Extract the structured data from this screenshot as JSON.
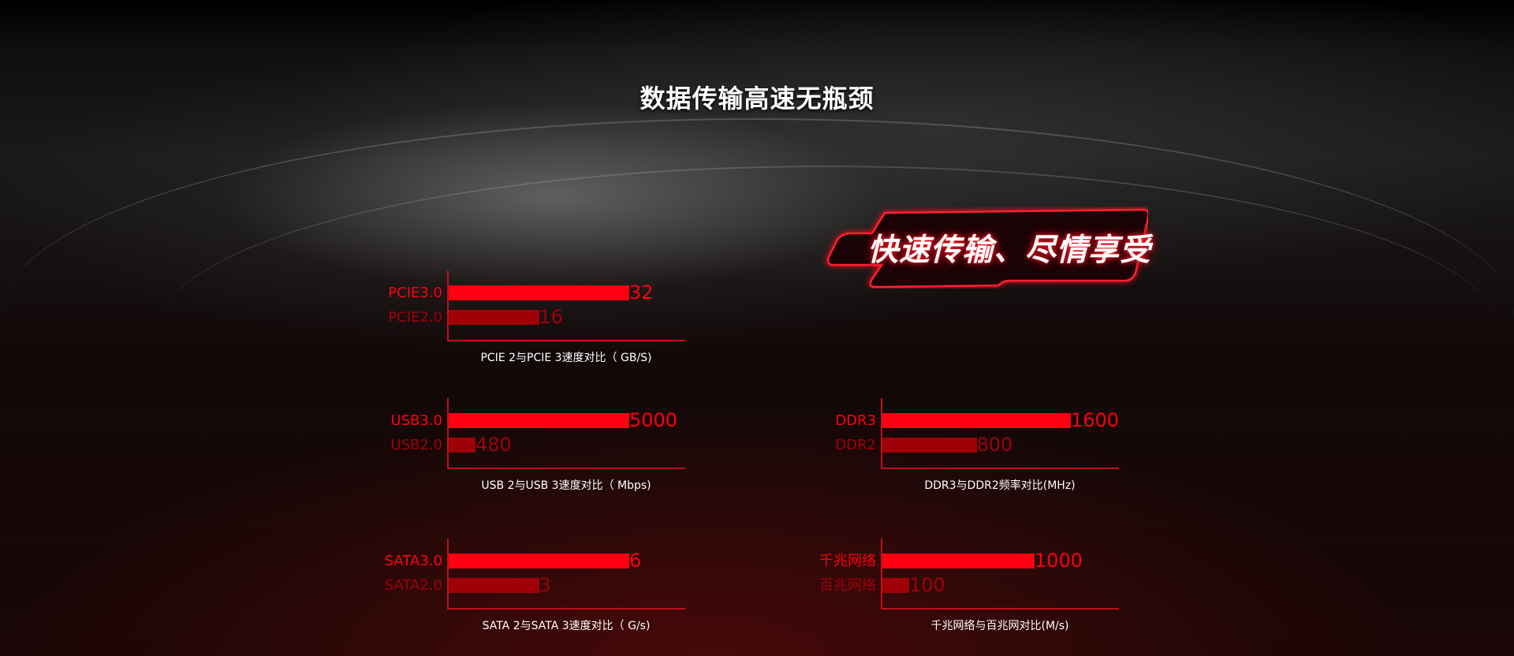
{
  "title": "数据传输高速无瓶颈",
  "badge": "快速传输、尽情享受",
  "colors": {
    "primary": "#ff0010",
    "secondary": "#a00008",
    "axis": "#c0101a"
  },
  "charts": [
    {
      "caption": "PCIE 2与PCIE 3速度对比（ GB/S)",
      "items": [
        {
          "label": "PCIE3.0",
          "value": 32,
          "value_text": "32"
        },
        {
          "label": "PCIE2.0",
          "value": 16,
          "value_text": "16"
        }
      ]
    },
    {
      "caption": "USB 2与USB 3速度对比（ Mbps)",
      "items": [
        {
          "label": "USB3.0",
          "value": 5000,
          "value_text": "5000"
        },
        {
          "label": "USB2.0",
          "value": 480,
          "value_text": "480"
        }
      ]
    },
    {
      "caption": "SATA 2与SATA 3速度对比（ G/s)",
      "items": [
        {
          "label": "SATA3.0",
          "value": 6,
          "value_text": "6"
        },
        {
          "label": "SATA2.0",
          "value": 3,
          "value_text": "3"
        }
      ]
    },
    {
      "caption": "DDR3与DDR2频率对比(MHz)",
      "items": [
        {
          "label": "DDR3",
          "value": 1600,
          "value_text": "1600"
        },
        {
          "label": "DDR2",
          "value": 800,
          "value_text": "800"
        }
      ]
    },
    {
      "caption": "千兆网络与百兆网对比(M/s)",
      "items": [
        {
          "label": "千兆网络",
          "value": 1000,
          "value_text": "1000"
        },
        {
          "label": "百兆网络",
          "value": 100,
          "value_text": "100"
        }
      ]
    }
  ]
}
